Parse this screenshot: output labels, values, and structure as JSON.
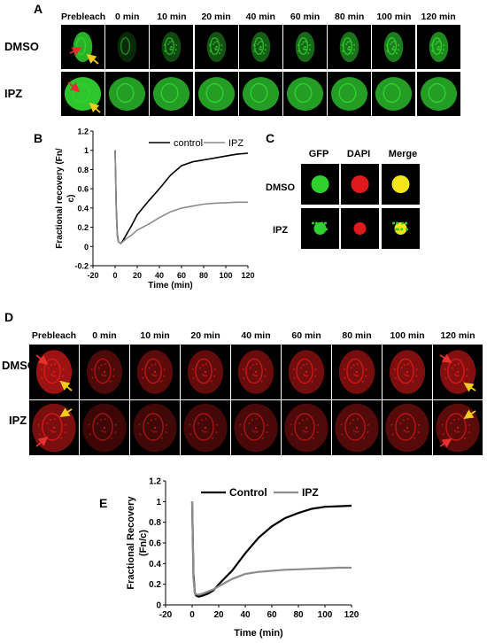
{
  "panelA": {
    "letter": "A",
    "timepoints": [
      "Prebleach",
      "0 min",
      "10 min",
      "20 min",
      "40 min",
      "60 min",
      "80 min",
      "100 min",
      "120 min"
    ],
    "rows": [
      "DMSO",
      "IPZ"
    ]
  },
  "panelB": {
    "letter": "B",
    "ylabel": "Fractional recovery (Fn/c)",
    "xlabel": "Time (min)"
  },
  "panelC": {
    "letter": "C",
    "columns": [
      "GFP",
      "DAPI",
      "Merge"
    ],
    "rows": [
      "DMSO",
      "IPZ"
    ]
  },
  "panelD": {
    "letter": "D",
    "timepoints": [
      "Prebleach",
      "0 min",
      "10 min",
      "20 min",
      "40 min",
      "60 min",
      "80 min",
      "100 min",
      "120 min"
    ],
    "rows": [
      "DMSO",
      "IPZ"
    ]
  },
  "panelE": {
    "letter": "E",
    "ylabel": "Fractional Recovery (Fn/c)",
    "xlabel": "Time (min)"
  },
  "colors": {
    "control": "#000000",
    "ipz": "#8c8c8c",
    "gfp": "#2fd12f",
    "mcherry": "#e01a1a",
    "merge": "#f4e41a",
    "arrow_red": "#e53030",
    "arrow_yellow": "#f2cc1a"
  },
  "chart_data": [
    {
      "id": "B",
      "type": "line",
      "title": "",
      "xlabel": "Time (min)",
      "ylabel": "Fractional recovery (Fn/ c)",
      "xlim": [
        -20,
        120
      ],
      "ylim": [
        -0.2,
        1.2
      ],
      "xticks": [
        -20,
        0,
        20,
        40,
        60,
        80,
        100,
        120
      ],
      "yticks": [
        -0.2,
        0,
        0.2,
        0.4,
        0.6,
        0.8,
        1,
        1.2
      ],
      "ytick_labels": [
        "-0.2",
        "0",
        "0.2",
        "0.4",
        "0.6",
        "0.8",
        "1",
        "1.2"
      ],
      "legend": "top-right",
      "grid": false,
      "series": [
        {
          "name": "control",
          "x": [
            0,
            1,
            2,
            3,
            5,
            7,
            10,
            15,
            20,
            30,
            40,
            50,
            60,
            70,
            80,
            90,
            100,
            110,
            120
          ],
          "y": [
            1.0,
            0.4,
            0.12,
            0.05,
            0.03,
            0.06,
            0.12,
            0.22,
            0.33,
            0.47,
            0.6,
            0.74,
            0.84,
            0.88,
            0.9,
            0.92,
            0.94,
            0.96,
            0.97
          ]
        },
        {
          "name": "IPZ",
          "x": [
            0,
            1,
            2,
            3,
            5,
            7,
            10,
            15,
            20,
            30,
            40,
            50,
            60,
            70,
            80,
            90,
            100,
            110,
            120
          ],
          "y": [
            1.0,
            0.35,
            0.1,
            0.05,
            0.03,
            0.05,
            0.08,
            0.12,
            0.17,
            0.23,
            0.3,
            0.36,
            0.4,
            0.42,
            0.44,
            0.45,
            0.455,
            0.46,
            0.46
          ]
        }
      ]
    },
    {
      "id": "E",
      "type": "line",
      "title": "",
      "xlabel": "Time (min)",
      "ylabel": "Fractional Recovery (Fn/c)",
      "xlim": [
        -20,
        120
      ],
      "ylim": [
        0,
        1.2
      ],
      "xticks": [
        -20,
        0,
        20,
        40,
        60,
        80,
        100,
        120
      ],
      "yticks": [
        0,
        0.2,
        0.4,
        0.6,
        0.8,
        1,
        1.2
      ],
      "ytick_labels": [
        "0",
        "0.2",
        "0.4",
        "0.6",
        "0.8",
        "1",
        "1.2"
      ],
      "legend": "top",
      "grid": false,
      "series": [
        {
          "name": "Control",
          "x": [
            0,
            1,
            2,
            3,
            5,
            8,
            12,
            16,
            20,
            30,
            40,
            50,
            60,
            70,
            80,
            90,
            100,
            110,
            120
          ],
          "y": [
            1.0,
            0.3,
            0.12,
            0.09,
            0.08,
            0.09,
            0.11,
            0.14,
            0.2,
            0.33,
            0.5,
            0.65,
            0.76,
            0.84,
            0.89,
            0.93,
            0.95,
            0.955,
            0.96
          ]
        },
        {
          "name": "IPZ",
          "x": [
            0,
            1,
            2,
            3,
            5,
            8,
            12,
            16,
            20,
            30,
            40,
            50,
            60,
            70,
            80,
            90,
            100,
            110,
            120
          ],
          "y": [
            1.0,
            0.25,
            0.12,
            0.1,
            0.1,
            0.11,
            0.13,
            0.15,
            0.18,
            0.25,
            0.3,
            0.32,
            0.33,
            0.34,
            0.345,
            0.35,
            0.355,
            0.36,
            0.36
          ]
        }
      ]
    }
  ]
}
